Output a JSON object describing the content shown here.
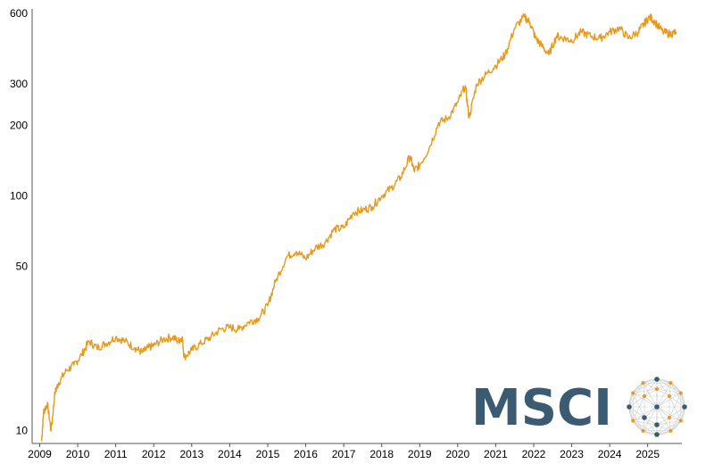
{
  "chart_data": {
    "type": "line",
    "title": "",
    "xlabel": "",
    "ylabel": "",
    "y_scale": "log",
    "ylim": [
      8.8,
      600
    ],
    "y_ticks": [
      10,
      50,
      100,
      200,
      300,
      600
    ],
    "y_tick_labels": [
      "10",
      "50",
      "100",
      "200",
      "300",
      "600"
    ],
    "x_ticks": [
      2009,
      2010,
      2011,
      2012,
      2013,
      2014,
      2015,
      2016,
      2017,
      2018,
      2019,
      2020,
      2021,
      2022,
      2023,
      2024,
      2025
    ],
    "x_tick_labels": [
      "2009",
      "2010",
      "2011",
      "2012",
      "2013",
      "2014",
      "2015",
      "2016",
      "2017",
      "2018",
      "2019",
      "2020",
      "2021",
      "2022",
      "2023",
      "2024",
      "2025"
    ],
    "xlim": [
      2008.8,
      2025.9
    ],
    "grid": false,
    "line_color": "#E8991C",
    "series": [
      {
        "x": [
          2009.05,
          2009.1,
          2009.2,
          2009.3,
          2009.4,
          2009.5,
          2009.7,
          2009.9,
          2010.1,
          2010.3,
          2010.5,
          2010.75,
          2011.0,
          2011.25,
          2011.5,
          2011.7,
          2011.85,
          2012.0,
          2012.25,
          2012.5,
          2012.65,
          2012.75,
          2012.8,
          2013.0,
          2013.25,
          2013.5,
          2013.75,
          2014.0,
          2014.25,
          2014.5,
          2014.75,
          2015.0,
          2015.2,
          2015.5,
          2015.75,
          2016.0,
          2016.25,
          2016.5,
          2016.75,
          2017.0,
          2017.25,
          2017.5,
          2017.75,
          2018.0,
          2018.25,
          2018.5,
          2018.75,
          2018.85,
          2019.0,
          2019.25,
          2019.5,
          2019.75,
          2020.0,
          2020.2,
          2020.3,
          2020.5,
          2020.75,
          2021.0,
          2021.25,
          2021.5,
          2021.75,
          2021.9,
          2022.05,
          2022.2,
          2022.4,
          2022.6,
          2022.8,
          2023.0,
          2023.25,
          2023.5,
          2023.75,
          2024.0,
          2024.25,
          2024.5,
          2024.75,
          2024.9,
          2025.05,
          2025.2,
          2025.4,
          2025.6,
          2025.75
        ],
        "values": [
          9.0,
          12.0,
          13.0,
          10.0,
          14.5,
          16.0,
          18.0,
          19.0,
          21.0,
          24.0,
          22.5,
          23.5,
          25.0,
          24.0,
          22.5,
          21.5,
          22.5,
          23.0,
          24.5,
          25.0,
          24.0,
          25.0,
          20.5,
          22.0,
          23.5,
          25.0,
          27.0,
          27.5,
          27.0,
          29.0,
          30.0,
          34.0,
          43.0,
          55.0,
          58.0,
          54.0,
          60.0,
          63.0,
          72.0,
          73.0,
          85.0,
          87.0,
          90.0,
          100.0,
          108.0,
          120.0,
          148.0,
          128.0,
          135.0,
          160.0,
          205.0,
          215.0,
          250.0,
          295.0,
          215.0,
          300.0,
          330.0,
          360.0,
          400.0,
          520.0,
          580.0,
          550.0,
          470.0,
          440.0,
          400.0,
          480.0,
          470.0,
          460.0,
          500.0,
          480.0,
          470.0,
          500.0,
          520.0,
          470.0,
          500.0,
          540.0,
          580.0,
          550.0,
          500.0,
          490.0,
          500.0
        ]
      }
    ]
  },
  "logo": {
    "text": "MSCI",
    "text_color": "#3B5B72",
    "accent_color": "#E8991C",
    "icon": "globe-network-icon"
  }
}
